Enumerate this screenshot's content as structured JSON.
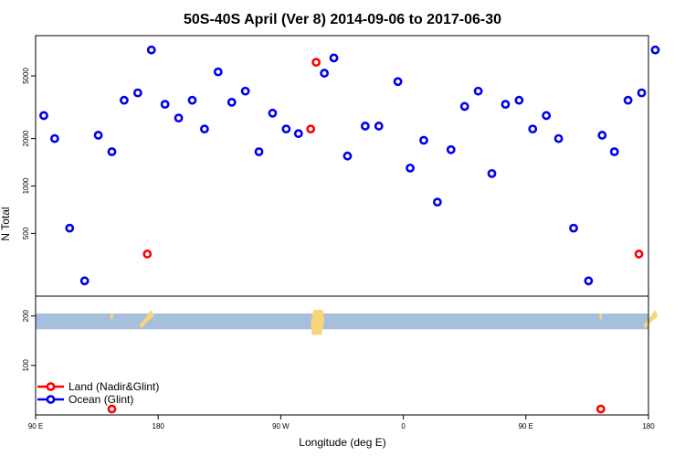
{
  "chart_data": {
    "type": "scatter",
    "title": "50S-40S April (Ver 8)   2014-09-06 to 2017-06-30",
    "xlabel": "Longitude (deg E)",
    "ylabel": "N Total",
    "x_ticks": [
      {
        "value": 90,
        "label": "90 E"
      },
      {
        "value": 180,
        "label": "180"
      },
      {
        "value": 270,
        "label": "90 W"
      },
      {
        "value": 360,
        "label": "0"
      },
      {
        "value": 450,
        "label": "90 E"
      },
      {
        "value": 540,
        "label": "180"
      }
    ],
    "xlim": [
      90,
      540
    ],
    "upper_panel": {
      "yscale": "log",
      "ylim": [
        200,
        9000
      ],
      "y_ticks": [
        {
          "value": 500,
          "label": "500"
        },
        {
          "value": 1000,
          "label": "1000"
        },
        {
          "value": 2000,
          "label": "2000"
        },
        {
          "value": 5000,
          "label": "5000"
        }
      ]
    },
    "lower_panel": {
      "ylim": [
        0,
        240
      ],
      "y_ticks": [
        {
          "value": 100,
          "label": "100"
        },
        {
          "value": 200,
          "label": "200"
        }
      ],
      "band": {
        "y_min": 173,
        "y_max": 205,
        "color": "#a8bedd"
      },
      "land_color": "#f7d67a"
    },
    "series": [
      {
        "name": "Land (Nadir&Glint)",
        "color": "#ff0000",
        "points": [
          [
            172,
            370
          ],
          [
            292,
            2300
          ],
          [
            296,
            6100
          ],
          [
            533,
            370
          ]
        ],
        "lower_points": [
          [
            146,
            12
          ],
          [
            505,
            12
          ]
        ]
      },
      {
        "name": "Ocean (Glint)",
        "color": "#0000ee",
        "points": [
          [
            96,
            2800
          ],
          [
            104,
            2000
          ],
          [
            115,
            540
          ],
          [
            126,
            250
          ],
          [
            136,
            2100
          ],
          [
            146,
            1650
          ],
          [
            155,
            3500
          ],
          [
            165,
            3900
          ],
          [
            175,
            7300
          ],
          [
            185,
            3300
          ],
          [
            195,
            2700
          ],
          [
            205,
            3500
          ],
          [
            214,
            2300
          ],
          [
            224,
            5300
          ],
          [
            234,
            3400
          ],
          [
            244,
            4000
          ],
          [
            254,
            1650
          ],
          [
            264,
            2900
          ],
          [
            274,
            2300
          ],
          [
            283,
            2150
          ],
          [
            302,
            5200
          ],
          [
            309,
            6500
          ],
          [
            319,
            1550
          ],
          [
            332,
            2400
          ],
          [
            342,
            2400
          ],
          [
            356,
            4600
          ],
          [
            365,
            1300
          ],
          [
            375,
            1950
          ],
          [
            385,
            790
          ],
          [
            395,
            1700
          ],
          [
            405,
            3200
          ],
          [
            415,
            4000
          ],
          [
            425,
            1200
          ],
          [
            435,
            3300
          ],
          [
            445,
            3500
          ],
          [
            455,
            2300
          ],
          [
            465,
            2800
          ],
          [
            474,
            2000
          ],
          [
            485,
            540
          ],
          [
            496,
            250
          ],
          [
            506,
            2100
          ],
          [
            515,
            1650
          ],
          [
            525,
            3500
          ],
          [
            535,
            3900
          ],
          [
            545,
            7300
          ]
        ]
      }
    ]
  }
}
